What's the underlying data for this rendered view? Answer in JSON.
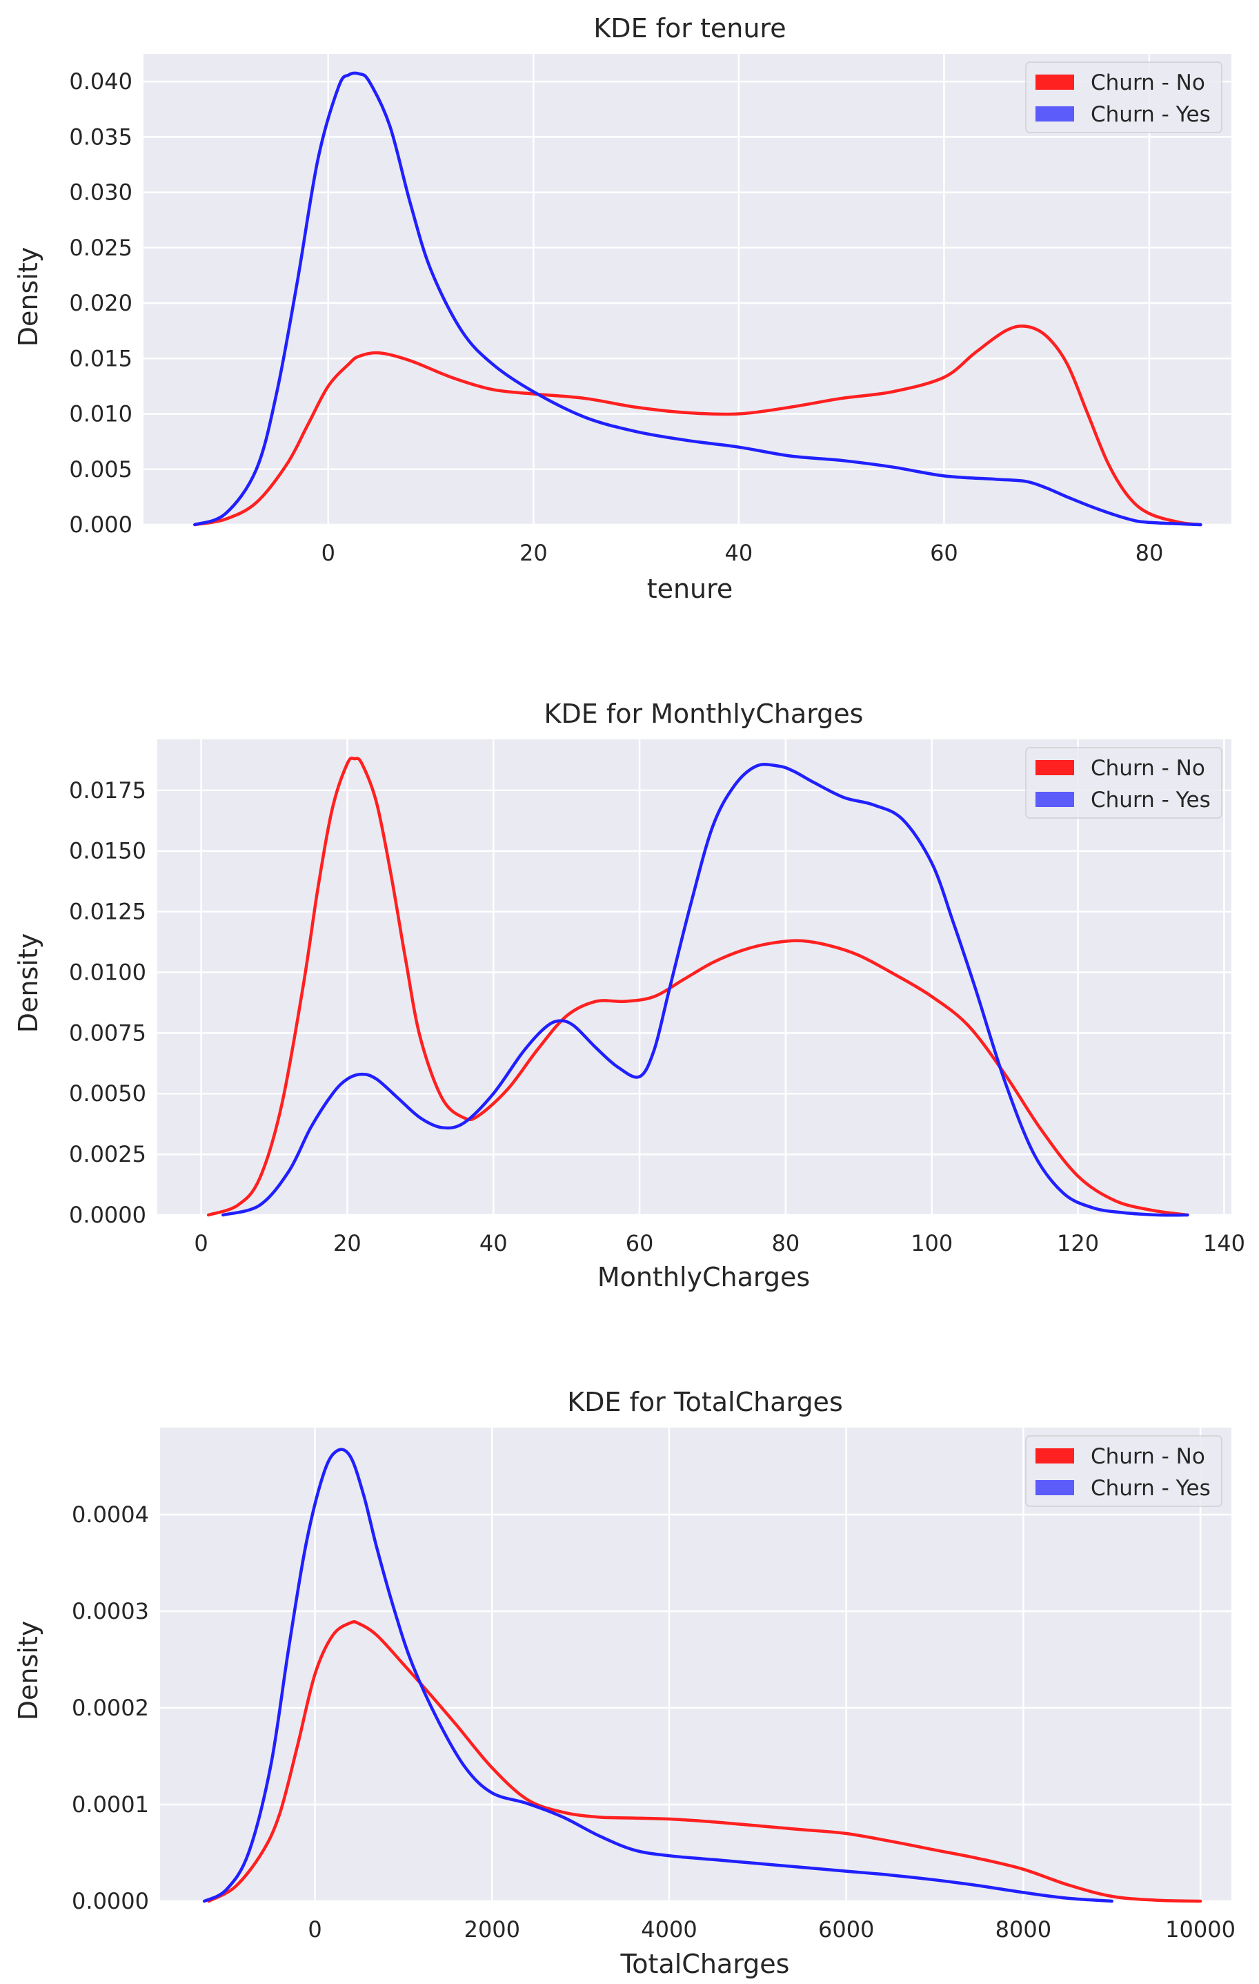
{
  "chart_data": [
    {
      "type": "line",
      "title": "KDE for tenure",
      "xlabel": "tenure",
      "ylabel": "Density",
      "xlim": [
        -18,
        88
      ],
      "ylim": [
        0,
        0.0425
      ],
      "xticks": [
        0,
        20,
        40,
        60,
        80
      ],
      "xtick_labels": [
        "0",
        "20",
        "40",
        "60",
        "80"
      ],
      "yticks": [
        0,
        0.005,
        0.01,
        0.015,
        0.02,
        0.025,
        0.03,
        0.035,
        0.04
      ],
      "ytick_labels": [
        "0.000",
        "0.005",
        "0.010",
        "0.015",
        "0.020",
        "0.025",
        "0.030",
        "0.035",
        "0.040"
      ],
      "grid": true,
      "legend_position": "top-right",
      "series": [
        {
          "name": "Churn - No",
          "color": "#ff2020",
          "x": [
            -13,
            -10,
            -7,
            -4,
            -2,
            0,
            2,
            3,
            5,
            8,
            12,
            16,
            20,
            25,
            30,
            35,
            40,
            45,
            50,
            55,
            60,
            63,
            66,
            68,
            70,
            72,
            74,
            76,
            78,
            80,
            83,
            85
          ],
          "y": [
            0.0,
            0.0005,
            0.002,
            0.0055,
            0.009,
            0.0125,
            0.0145,
            0.0152,
            0.0155,
            0.0148,
            0.0133,
            0.0122,
            0.0118,
            0.0114,
            0.0106,
            0.0101,
            0.01,
            0.0106,
            0.0114,
            0.012,
            0.0133,
            0.0155,
            0.0175,
            0.0179,
            0.017,
            0.0145,
            0.01,
            0.0055,
            0.0025,
            0.001,
            0.0002,
            0.0
          ]
        },
        {
          "name": "Churn - Yes",
          "color": "#2020ff",
          "x": [
            -13,
            -10,
            -7,
            -5,
            -3,
            -1,
            1,
            2,
            3,
            4,
            6,
            8,
            10,
            13,
            16,
            20,
            25,
            30,
            35,
            40,
            45,
            50,
            55,
            60,
            65,
            68,
            70,
            72,
            75,
            78,
            80,
            85
          ],
          "y": [
            0.0,
            0.001,
            0.005,
            0.012,
            0.022,
            0.033,
            0.0395,
            0.0406,
            0.0407,
            0.04,
            0.036,
            0.029,
            0.023,
            0.0175,
            0.0145,
            0.012,
            0.0097,
            0.0084,
            0.0076,
            0.007,
            0.0062,
            0.0058,
            0.0052,
            0.0044,
            0.0041,
            0.0039,
            0.0033,
            0.0025,
            0.0014,
            0.0005,
            0.0002,
            0.0
          ]
        }
      ]
    },
    {
      "type": "line",
      "title": "KDE for MonthlyCharges",
      "xlabel": "MonthlyCharges",
      "ylabel": "Density",
      "xlim": [
        -6,
        141
      ],
      "ylim": [
        0,
        0.0196
      ],
      "xticks": [
        0,
        20,
        40,
        60,
        80,
        100,
        120,
        140
      ],
      "xtick_labels": [
        "0",
        "20",
        "40",
        "60",
        "80",
        "100",
        "120",
        "140"
      ],
      "yticks": [
        0,
        0.0025,
        0.005,
        0.0075,
        0.01,
        0.0125,
        0.015,
        0.0175
      ],
      "ytick_labels": [
        "0.0000",
        "0.0025",
        "0.0050",
        "0.0075",
        "0.0100",
        "0.0125",
        "0.0150",
        "0.0175"
      ],
      "grid": true,
      "legend_position": "top-right",
      "series": [
        {
          "name": "Churn - No",
          "color": "#ff2020",
          "x": [
            1,
            5,
            8,
            11,
            14,
            16,
            18,
            20,
            21,
            22,
            24,
            26,
            28,
            30,
            33,
            36,
            38,
            42,
            46,
            50,
            54,
            58,
            62,
            66,
            70,
            74,
            78,
            82,
            86,
            90,
            95,
            100,
            105,
            110,
            115,
            120,
            125,
            130,
            135
          ],
          "y": [
            0.0,
            0.0004,
            0.0015,
            0.0045,
            0.0095,
            0.0135,
            0.0168,
            0.0186,
            0.0188,
            0.0186,
            0.017,
            0.014,
            0.0105,
            0.0073,
            0.0048,
            0.004,
            0.0041,
            0.0052,
            0.0068,
            0.0082,
            0.0088,
            0.0088,
            0.009,
            0.0097,
            0.0104,
            0.0109,
            0.0112,
            0.0113,
            0.0111,
            0.0107,
            0.0099,
            0.009,
            0.0078,
            0.0058,
            0.0035,
            0.0016,
            0.0006,
            0.0002,
            0.0
          ]
        },
        {
          "name": "Churn - Yes",
          "color": "#2020ff",
          "x": [
            3,
            8,
            12,
            15,
            18,
            20,
            22,
            24,
            27,
            30,
            33,
            36,
            40,
            44,
            47,
            49,
            51,
            54,
            57,
            60,
            62,
            64,
            67,
            70,
            73,
            76,
            79,
            81,
            84,
            88,
            92,
            96,
            100,
            103,
            106,
            110,
            114,
            118,
            122,
            126,
            131,
            135
          ],
          "y": [
            0.0,
            0.0004,
            0.0018,
            0.0036,
            0.005,
            0.0056,
            0.0058,
            0.0056,
            0.0048,
            0.004,
            0.0036,
            0.0038,
            0.005,
            0.0067,
            0.0077,
            0.008,
            0.0078,
            0.0069,
            0.0061,
            0.0057,
            0.0068,
            0.0092,
            0.0128,
            0.016,
            0.0177,
            0.0185,
            0.0185,
            0.0183,
            0.0178,
            0.0172,
            0.0169,
            0.0163,
            0.0145,
            0.012,
            0.0093,
            0.0055,
            0.0025,
            0.0009,
            0.0003,
            0.0001,
            0.0,
            0.0
          ]
        }
      ]
    },
    {
      "type": "line",
      "title": "KDE for TotalCharges",
      "xlabel": "TotalCharges",
      "ylabel": "Density",
      "xlim": [
        -1750,
        10350
      ],
      "ylim": [
        0,
        0.00049
      ],
      "xticks": [
        0,
        2000,
        4000,
        6000,
        8000,
        10000
      ],
      "xtick_labels": [
        "0",
        "2000",
        "4000",
        "6000",
        "8000",
        "10000"
      ],
      "yticks": [
        0,
        0.0001,
        0.0002,
        0.0003,
        0.0004
      ],
      "ytick_labels": [
        "0.0000",
        "0.0001",
        "0.0002",
        "0.0003",
        "0.0004"
      ],
      "grid": true,
      "legend_position": "top-right",
      "series": [
        {
          "name": "Churn - No",
          "color": "#ff2020",
          "x": [
            -1200,
            -900,
            -600,
            -400,
            -200,
            0,
            200,
            400,
            500,
            700,
            1000,
            1300,
            1600,
            2000,
            2400,
            2800,
            3200,
            3600,
            4000,
            4500,
            5000,
            5500,
            6000,
            6500,
            7000,
            7500,
            8000,
            8500,
            9000,
            9500,
            10000
          ],
          "y": [
            0.0,
            1.5e-05,
            5e-05,
            9e-05,
            0.00016,
            0.000235,
            0.000275,
            0.000288,
            0.000287,
            0.000275,
            0.000245,
            0.000214,
            0.000182,
            0.000138,
            0.000105,
            9.2e-05,
            8.7e-05,
            8.6e-05,
            8.5e-05,
            8.2e-05,
            7.8e-05,
            7.4e-05,
            7e-05,
            6.2e-05,
            5.3e-05,
            4.4e-05,
            3.3e-05,
            1.7e-05,
            5e-06,
            1e-06,
            0.0
          ]
        },
        {
          "name": "Churn - Yes",
          "color": "#2020ff",
          "x": [
            -1250,
            -1000,
            -750,
            -500,
            -300,
            -100,
            100,
            250,
            400,
            550,
            700,
            900,
            1100,
            1400,
            1700,
            2000,
            2400,
            2800,
            3200,
            3600,
            4000,
            4500,
            5000,
            5500,
            6000,
            6500,
            7000,
            7500,
            8000,
            8500,
            9000
          ],
          "y": [
            0.0,
            1.2e-05,
            5e-05,
            0.00014,
            0.00026,
            0.00037,
            0.000443,
            0.000466,
            0.00046,
            0.00042,
            0.000365,
            0.0003,
            0.000245,
            0.000185,
            0.000138,
            0.000112,
            0.000101,
            8.7e-05,
            6.8e-05,
            5.3e-05,
            4.7e-05,
            4.3e-05,
            3.9e-05,
            3.5e-05,
            3.1e-05,
            2.7e-05,
            2.2e-05,
            1.6e-05,
            9e-06,
            3e-06,
            0.0
          ]
        }
      ]
    }
  ]
}
